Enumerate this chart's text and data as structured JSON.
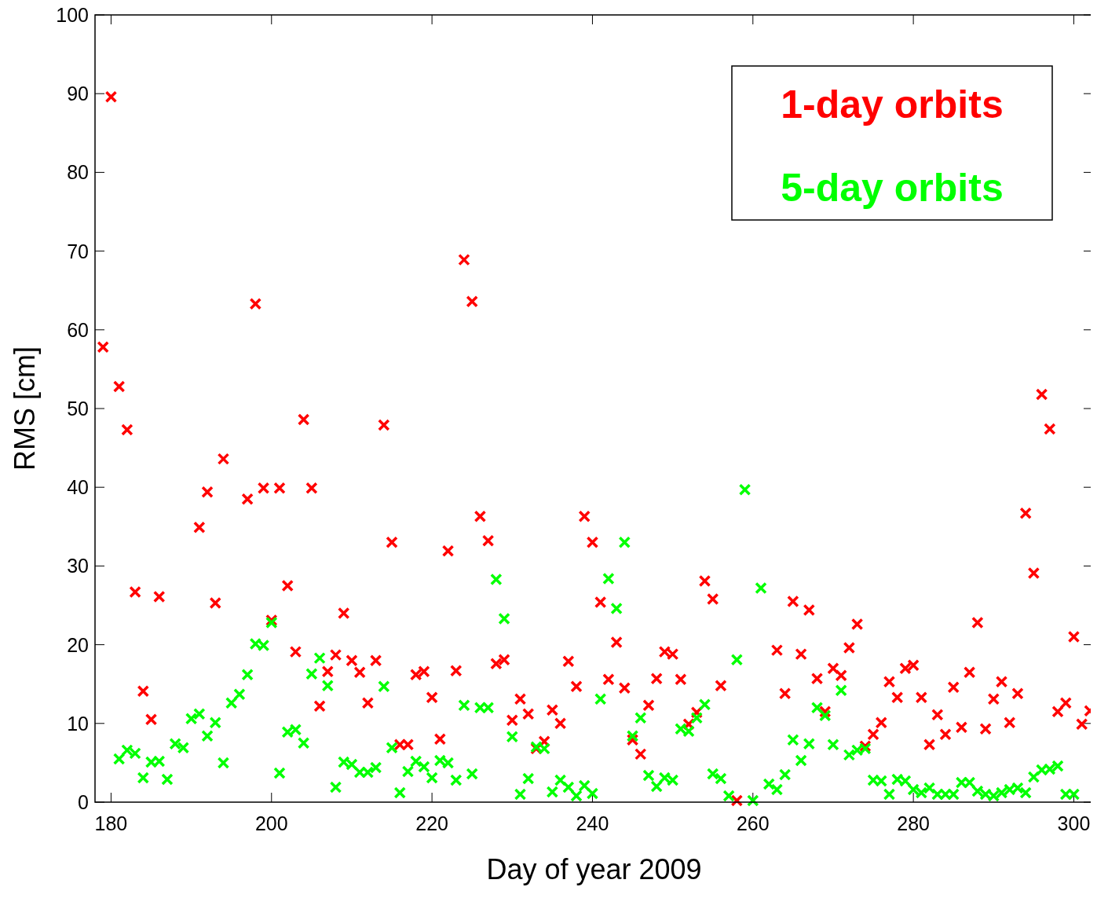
{
  "chart_data": {
    "type": "scatter",
    "xlabel": "Day of year 2009",
    "ylabel": "RMS [cm]",
    "xlim": [
      178,
      302.4
    ],
    "ylim": [
      0,
      100
    ],
    "xticks": [
      180,
      200,
      220,
      240,
      260,
      280,
      300
    ],
    "yticks": [
      0,
      10,
      20,
      30,
      40,
      50,
      60,
      70,
      80,
      90,
      100
    ],
    "grid": false,
    "legend": "top right",
    "marker": "cross",
    "series": [
      {
        "name": "1-day orbits",
        "color": "#ff0000",
        "x": [
          179,
          180,
          181,
          182,
          183,
          184,
          185,
          186,
          191,
          192,
          193,
          194,
          197,
          198,
          199,
          200,
          201,
          202,
          203,
          204,
          205,
          206,
          207,
          208,
          209,
          210,
          211,
          212,
          213,
          214,
          215,
          216,
          217,
          218,
          219,
          220,
          221,
          222,
          223,
          224,
          225,
          226,
          227,
          228,
          229,
          230,
          231,
          232,
          233,
          234,
          235,
          236,
          237,
          238,
          239,
          240,
          241,
          242,
          243,
          244,
          245,
          246,
          247,
          248,
          249,
          250,
          251,
          252,
          253,
          254,
          255,
          256,
          258,
          263,
          264,
          265,
          266,
          267,
          268,
          269,
          270,
          271,
          272,
          273,
          274,
          275,
          276,
          277,
          278,
          279,
          280,
          281,
          282,
          283,
          284,
          285,
          286,
          287,
          288,
          289,
          290,
          291,
          292,
          293,
          294,
          295,
          296,
          297,
          298,
          299,
          300,
          301,
          302
        ],
        "values": [
          57.8,
          89.6,
          52.8,
          47.3,
          26.7,
          14.1,
          10.5,
          26.1,
          34.9,
          39.4,
          25.3,
          43.6,
          38.5,
          63.3,
          39.9,
          23.1,
          39.9,
          27.5,
          19.1,
          48.6,
          39.9,
          12.2,
          16.6,
          18.7,
          24.0,
          18.0,
          16.5,
          12.6,
          18.0,
          47.9,
          33.0,
          7.3,
          7.3,
          16.2,
          16.6,
          13.3,
          8.0,
          31.9,
          16.7,
          68.9,
          63.6,
          36.3,
          33.2,
          17.6,
          18.1,
          10.4,
          13.1,
          11.2,
          6.8,
          7.7,
          11.7,
          10.0,
          17.9,
          14.7,
          36.3,
          33.0,
          25.4,
          15.6,
          20.3,
          14.5,
          7.9,
          6.1,
          12.3,
          15.7,
          19.1,
          18.8,
          15.6,
          9.9,
          11.4,
          28.1,
          25.8,
          14.8,
          0.2,
          19.3,
          13.8,
          25.5,
          18.8,
          24.4,
          15.7,
          11.5,
          17.0,
          16.1,
          19.6,
          22.6,
          7.1,
          8.6,
          10.1,
          15.3,
          13.3,
          17.0,
          17.4,
          13.3,
          7.3,
          11.1,
          8.6,
          14.6,
          9.5,
          16.5,
          22.8,
          9.3,
          13.1,
          15.3,
          10.1,
          13.8,
          36.7,
          29.1,
          51.8,
          47.4,
          11.5,
          12.6,
          21.0,
          9.9,
          11.6
        ]
      },
      {
        "name": "5-day orbits",
        "color": "#00ff00",
        "x": [
          181,
          182,
          183,
          184,
          185,
          186,
          187,
          188,
          189,
          190,
          191,
          192,
          193,
          194,
          195,
          196,
          197,
          198,
          199,
          200,
          201,
          202,
          203,
          204,
          205,
          206,
          207,
          208,
          209,
          210,
          211,
          212,
          213,
          214,
          215,
          216,
          217,
          218,
          219,
          220,
          221,
          222,
          223,
          224,
          225,
          226,
          227,
          228,
          229,
          230,
          231,
          232,
          233,
          234,
          235,
          236,
          237,
          238,
          239,
          240,
          241,
          242,
          243,
          244,
          245,
          246,
          247,
          248,
          249,
          250,
          251,
          252,
          253,
          254,
          255,
          256,
          257,
          258,
          259,
          260,
          261,
          262,
          263,
          264,
          265,
          266,
          267,
          268,
          269,
          270,
          271,
          272,
          273,
          274,
          275,
          276,
          277,
          278,
          279,
          280,
          281,
          282,
          283,
          284,
          285,
          286,
          287,
          288,
          289,
          290,
          291,
          292,
          293,
          294,
          295,
          296,
          297,
          298,
          299,
          300
        ],
        "values": [
          5.5,
          6.6,
          6.2,
          3.1,
          5.1,
          5.2,
          2.9,
          7.4,
          6.9,
          10.6,
          11.2,
          8.4,
          10.1,
          5.0,
          12.6,
          13.7,
          16.2,
          20.1,
          19.9,
          22.8,
          3.7,
          8.9,
          9.2,
          7.5,
          16.3,
          18.3,
          14.8,
          1.9,
          5.1,
          4.8,
          3.8,
          3.8,
          4.4,
          14.7,
          6.9,
          1.2,
          3.9,
          5.2,
          4.5,
          3.1,
          5.3,
          5.0,
          2.8,
          12.3,
          3.6,
          12.0,
          12.0,
          28.3,
          23.3,
          8.3,
          1.0,
          3.0,
          7.0,
          6.8,
          1.3,
          2.8,
          1.9,
          0.8,
          2.1,
          1.1,
          13.1,
          28.4,
          24.6,
          33.0,
          8.4,
          10.7,
          3.4,
          2.0,
          3.1,
          2.8,
          9.3,
          9.0,
          10.7,
          12.4,
          3.6,
          3.0,
          0.8,
          18.1,
          39.7,
          0.2,
          27.2,
          2.3,
          1.6,
          3.5,
          7.9,
          5.3,
          7.4,
          12.0,
          11.0,
          7.3,
          14.2,
          6.0,
          6.6,
          6.8,
          2.8,
          2.7,
          1.0,
          2.9,
          2.7,
          1.6,
          1.2,
          1.8,
          1.0,
          1.0,
          1.0,
          2.5,
          2.5,
          1.4,
          1.0,
          0.8,
          1.2,
          1.6,
          1.8,
          1.2,
          3.2,
          4.1,
          4.2,
          4.6,
          1.0,
          1.0
        ]
      }
    ]
  }
}
